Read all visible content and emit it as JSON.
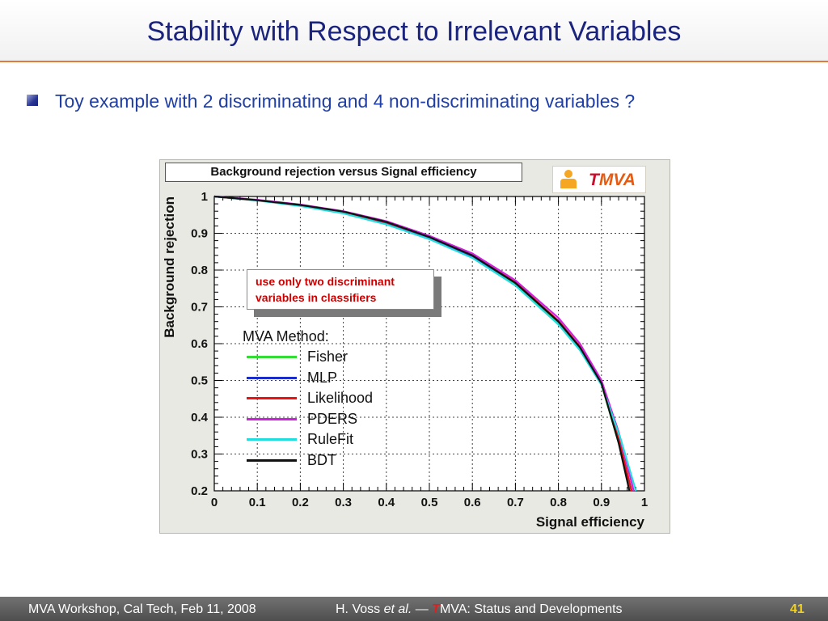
{
  "slide": {
    "title": "Stability with Respect to Irrelevant Variables",
    "bullet": "Toy example with 2 discriminating and 4 non-discriminating variables ?"
  },
  "logo": {
    "t": "T",
    "rest": "MVA"
  },
  "note": {
    "line1": "use only two discriminant",
    "line2": "variables in classifiers"
  },
  "legend": {
    "title": "MVA Method:",
    "items": [
      {
        "label": "Fisher",
        "color": "#33dd33"
      },
      {
        "label": "MLP",
        "color": "#1c2cc8"
      },
      {
        "label": "Likelihood",
        "color": "#ee1111"
      },
      {
        "label": "PDERS",
        "color": "#cc22dd"
      },
      {
        "label": "RuleFit",
        "color": "#22dddd"
      },
      {
        "label": "BDT",
        "color": "#111111"
      }
    ]
  },
  "chart_data": {
    "type": "line",
    "title": "Background rejection versus Signal efficiency",
    "xlabel": "Signal efficiency",
    "ylabel": "Background rejection",
    "xlim": [
      0,
      1
    ],
    "ylim": [
      0.2,
      1
    ],
    "xticks": [
      "0",
      "0.1",
      "0.2",
      "0.3",
      "0.4",
      "0.5",
      "0.6",
      "0.7",
      "0.8",
      "0.9",
      "1"
    ],
    "yticks": [
      "0.2",
      "0.3",
      "0.4",
      "0.5",
      "0.6",
      "0.7",
      "0.8",
      "0.9",
      "1"
    ],
    "grid": true,
    "legend_position": "center-left",
    "series": [
      {
        "name": "Fisher",
        "x": [
          0,
          0.1,
          0.2,
          0.3,
          0.4,
          0.5,
          0.6,
          0.7,
          0.8,
          0.85,
          0.9,
          0.94,
          0.97
        ],
        "y": [
          1,
          0.99,
          0.975,
          0.955,
          0.925,
          0.885,
          0.835,
          0.76,
          0.655,
          0.585,
          0.49,
          0.33,
          0.2
        ]
      },
      {
        "name": "MLP",
        "x": [
          0,
          0.1,
          0.2,
          0.3,
          0.4,
          0.5,
          0.6,
          0.7,
          0.8,
          0.85,
          0.9,
          0.94,
          0.97
        ],
        "y": [
          1,
          0.99,
          0.976,
          0.957,
          0.928,
          0.888,
          0.838,
          0.765,
          0.66,
          0.59,
          0.495,
          0.34,
          0.2
        ]
      },
      {
        "name": "Likelihood",
        "x": [
          0,
          0.1,
          0.2,
          0.3,
          0.4,
          0.5,
          0.6,
          0.7,
          0.8,
          0.85,
          0.9,
          0.94,
          0.97
        ],
        "y": [
          1,
          0.99,
          0.976,
          0.958,
          0.93,
          0.89,
          0.84,
          0.767,
          0.662,
          0.592,
          0.497,
          0.342,
          0.2
        ]
      },
      {
        "name": "PDERS",
        "x": [
          0,
          0.1,
          0.2,
          0.3,
          0.4,
          0.5,
          0.6,
          0.7,
          0.8,
          0.85,
          0.9,
          0.94,
          0.975
        ],
        "y": [
          1,
          0.991,
          0.978,
          0.96,
          0.933,
          0.893,
          0.845,
          0.772,
          0.67,
          0.6,
          0.5,
          0.36,
          0.2
        ]
      },
      {
        "name": "RuleFit",
        "x": [
          0,
          0.1,
          0.2,
          0.3,
          0.4,
          0.5,
          0.6,
          0.7,
          0.8,
          0.85,
          0.9,
          0.945,
          0.98
        ],
        "y": [
          1,
          0.989,
          0.974,
          0.954,
          0.924,
          0.884,
          0.833,
          0.758,
          0.652,
          0.582,
          0.488,
          0.34,
          0.2
        ]
      },
      {
        "name": "BDT",
        "x": [
          0,
          0.1,
          0.2,
          0.3,
          0.4,
          0.5,
          0.6,
          0.7,
          0.8,
          0.85,
          0.9,
          0.94,
          0.965
        ],
        "y": [
          1,
          0.99,
          0.977,
          0.959,
          0.931,
          0.89,
          0.84,
          0.765,
          0.66,
          0.59,
          0.492,
          0.33,
          0.2
        ]
      }
    ]
  },
  "footer": {
    "left": "MVA Workshop, Cal Tech, Feb 11, 2008",
    "author": "H. Voss ",
    "etal": "et al.",
    "dash": " — ",
    "t": "T",
    "rest": "MVA: Status and Developments",
    "page": "41"
  }
}
